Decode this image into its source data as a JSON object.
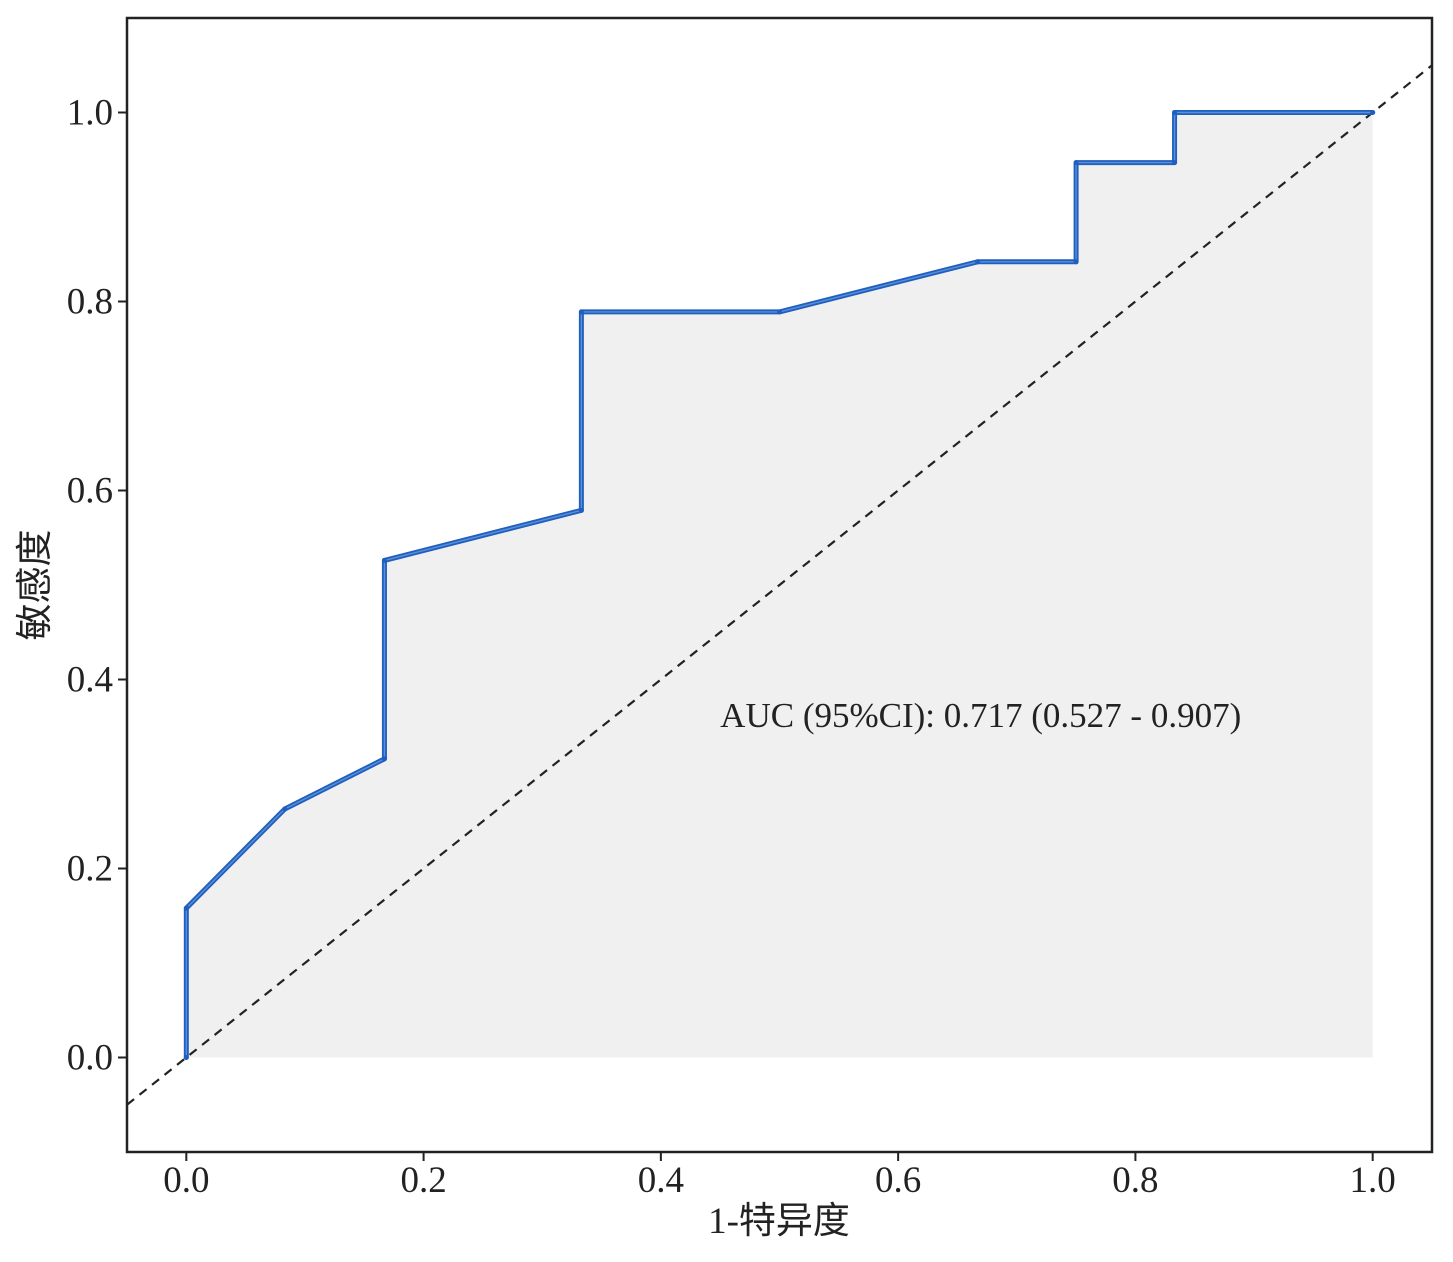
{
  "chart_data": {
    "type": "line",
    "title": "",
    "xlabel": "1-特异度",
    "ylabel": "敏感度",
    "xlim": [
      -0.05,
      1.05
    ],
    "ylim": [
      -0.1,
      1.1
    ],
    "xticks": [
      0.0,
      0.2,
      0.4,
      0.6,
      0.8,
      1.0
    ],
    "yticks": [
      0.0,
      0.2,
      0.4,
      0.6,
      0.8,
      1.0
    ],
    "xtick_labels": [
      "0.0",
      "0.2",
      "0.4",
      "0.6",
      "0.8",
      "1.0"
    ],
    "ytick_labels": [
      "0.0",
      "0.2",
      "0.4",
      "0.6",
      "0.8",
      "1.0"
    ],
    "grid": false,
    "series": [
      {
        "role": "roc-curve",
        "color": "#1f5fbf",
        "fill": "#f0f0f0",
        "x": [
          0.0,
          0.0,
          0.083,
          0.167,
          0.167,
          0.333,
          0.333,
          0.5,
          0.667,
          0.75,
          0.75,
          0.833,
          0.833,
          1.0
        ],
        "y": [
          0.0,
          0.158,
          0.263,
          0.316,
          0.526,
          0.579,
          0.789,
          0.789,
          0.842,
          0.842,
          0.947,
          0.947,
          1.0,
          1.0
        ]
      },
      {
        "role": "reference-diagonal",
        "color": "#222222",
        "dashed": true,
        "x": [
          -0.05,
          1.05
        ],
        "y": [
          -0.05,
          1.05
        ]
      }
    ],
    "annotations": [
      {
        "text": "AUC (95%CI): 0.717 (0.527 - 0.907)",
        "x": 0.45,
        "y": 0.35
      }
    ]
  }
}
